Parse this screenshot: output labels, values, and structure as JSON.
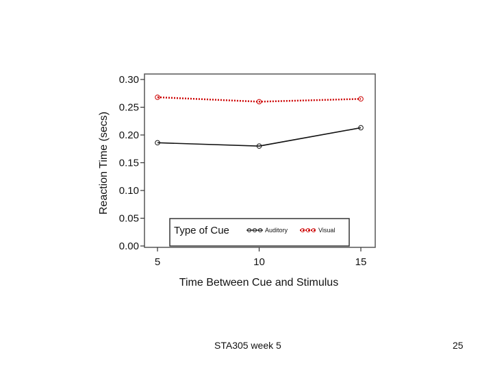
{
  "slide": {
    "footer": "STA305 week 5",
    "number": "25"
  },
  "chart_data": {
    "type": "line",
    "title": "",
    "xlabel": "Time Between Cue and Stimulus",
    "ylabel": "Reaction Time  (secs)",
    "x": [
      5,
      10,
      15
    ],
    "x_ticks": [
      "5",
      "10",
      "15"
    ],
    "y_ticks": [
      "0.00",
      "0.05",
      "0.10",
      "0.15",
      "0.20",
      "0.25",
      "0.30"
    ],
    "ylim": [
      0,
      0.3
    ],
    "xlim": [
      5,
      15
    ],
    "grid": false,
    "legend": {
      "title": "Type of Cue",
      "placement": "bottom-center"
    },
    "series": [
      {
        "name": "Auditory",
        "values": [
          0.186,
          0.18,
          0.213
        ],
        "color": "#111111",
        "line": "solid",
        "marker": "circle"
      },
      {
        "name": "Visual",
        "values": [
          0.268,
          0.26,
          0.265
        ],
        "color": "#cc0000",
        "line": "dotted",
        "marker": "circle"
      }
    ]
  }
}
